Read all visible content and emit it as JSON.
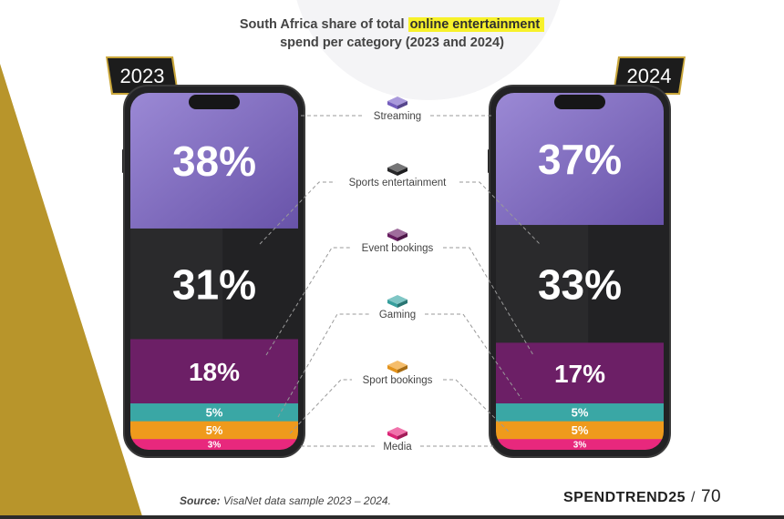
{
  "title": {
    "prefix": "South Africa share of total ",
    "highlight": "online entertainment",
    "line2": "spend per category (2023 and 2024)"
  },
  "source": {
    "label": "Source:",
    "text": " VisaNet data sample 2023 – 2024."
  },
  "brand": {
    "part1": "SPEND",
    "part2": "TREND25",
    "separator": "/",
    "page": "70"
  },
  "colors": {
    "accent_gold": "#b8952b",
    "highlight": "#f7f12a"
  },
  "chart_data": {
    "type": "bar",
    "stacked": true,
    "categories": [
      "2023",
      "2024"
    ],
    "series": [
      {
        "name": "Streaming",
        "values": [
          38,
          37
        ],
        "color": "#7a62c7",
        "icon": "streaming-cube-icon"
      },
      {
        "name": "Sports entertainment",
        "values": [
          31,
          33
        ],
        "color": "#2a2a2c",
        "icon": "sports-entertainment-cube-icon"
      },
      {
        "name": "Event bookings",
        "values": [
          18,
          17
        ],
        "color": "#6c1f66",
        "icon": "event-bookings-cube-icon"
      },
      {
        "name": "Gaming",
        "values": [
          5,
          5
        ],
        "color": "#3aa7a5",
        "icon": "gaming-cube-icon"
      },
      {
        "name": "Sport bookings",
        "values": [
          5,
          5
        ],
        "color": "#ef9a1c",
        "icon": "sport-bookings-cube-icon"
      },
      {
        "name": "Media",
        "values": [
          3,
          3
        ],
        "color": "#e8287d",
        "icon": "media-cube-icon"
      }
    ],
    "unit": "%",
    "ylim": [
      0,
      100
    ]
  }
}
